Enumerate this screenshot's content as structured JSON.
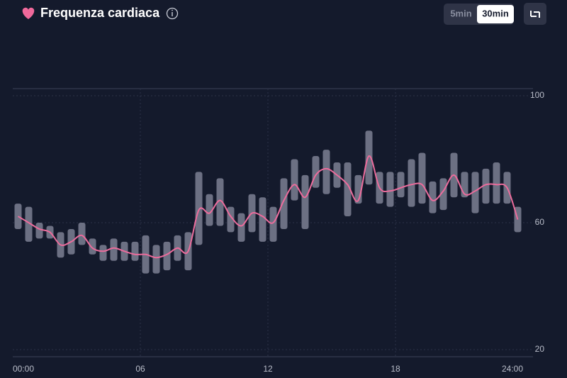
{
  "chart_data": {
    "type": "range-bar-line",
    "title": "Frequenza cardiaca",
    "toggles": [
      "5min",
      "30min"
    ],
    "active_toggle": 1,
    "x": [
      0.25,
      0.75,
      1.25,
      1.75,
      2.25,
      2.75,
      3.25,
      3.75,
      4.25,
      4.75,
      5.25,
      5.75,
      6.25,
      6.75,
      7.25,
      7.75,
      8.25,
      8.75,
      9.25,
      9.75,
      10.25,
      10.75,
      11.25,
      11.75,
      12.25,
      12.75,
      13.25,
      13.75,
      14.25,
      14.75,
      15.25,
      15.75,
      16.25,
      16.75,
      17.25,
      17.75,
      18.25,
      18.75,
      19.25,
      19.75,
      20.25,
      20.75,
      21.25,
      21.75,
      22.25,
      22.75,
      23.25,
      23.75
    ],
    "low": [
      58,
      54,
      55,
      55,
      49,
      50,
      53,
      50,
      48,
      48,
      48,
      48,
      44,
      44,
      45,
      48,
      45,
      53,
      59,
      59,
      57,
      54,
      57,
      54,
      54,
      58,
      67,
      58,
      71,
      69,
      71,
      62,
      66,
      72,
      66,
      65,
      68,
      65,
      66,
      63,
      64,
      68,
      68,
      63,
      66,
      66,
      66,
      57
    ],
    "high": [
      66,
      65,
      60,
      59,
      57,
      58,
      60,
      55,
      53,
      55,
      54,
      54,
      56,
      53,
      54,
      56,
      57,
      76,
      69,
      74,
      65,
      63,
      69,
      68,
      65,
      74,
      80,
      75,
      81,
      83,
      79,
      79,
      75,
      89,
      76,
      76,
      76,
      80,
      82,
      73,
      74,
      82,
      76,
      76,
      77,
      79,
      76,
      65
    ],
    "values": [
      62,
      60,
      58,
      57,
      53,
      54,
      56,
      52,
      51,
      52,
      51,
      50,
      50,
      49,
      50,
      52,
      51,
      64,
      63,
      67,
      62,
      59,
      63,
      62,
      60,
      67,
      72,
      68,
      75,
      77,
      75,
      72,
      67,
      81,
      71,
      70,
      71,
      72,
      72,
      67,
      70,
      75,
      69,
      70,
      72,
      72,
      71,
      61
    ],
    "bar_color": "#6c7083",
    "line_color": "#ec6c9c",
    "xlim": [
      0,
      24
    ],
    "xticks": [
      {
        "value": 0,
        "label": "00:00"
      },
      {
        "value": 6,
        "label": "06"
      },
      12,
      18,
      {
        "value": 24,
        "label": "24:00"
      }
    ],
    "ylim": [
      20,
      100
    ],
    "yticks": [
      20,
      60,
      100
    ],
    "grid": true
  }
}
